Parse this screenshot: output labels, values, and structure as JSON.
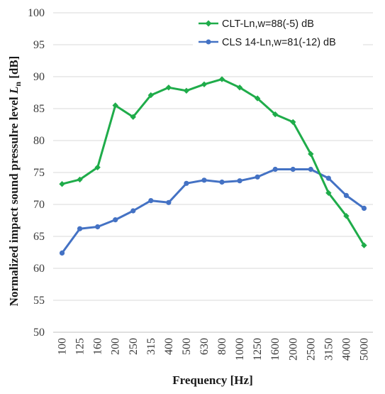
{
  "chart_data": {
    "type": "line",
    "categories": [
      "100",
      "125",
      "160",
      "200",
      "250",
      "315",
      "400",
      "500",
      "630",
      "800",
      "1000",
      "1250",
      "1600",
      "2000",
      "2500",
      "3150",
      "4000",
      "5000"
    ],
    "series": [
      {
        "name": "CLT-Ln,w=88(-5) dB",
        "color": "#1fac4a",
        "marker": "diamond",
        "values": [
          73.2,
          73.9,
          75.8,
          85.5,
          83.7,
          87.1,
          88.3,
          87.8,
          88.8,
          89.6,
          88.3,
          86.6,
          84.1,
          82.9,
          77.9,
          71.8,
          68.2,
          63.6
        ]
      },
      {
        "name": "CLS 14-Ln,w=81(-12) dB",
        "color": "#4472c4",
        "marker": "circle",
        "values": [
          62.4,
          66.2,
          66.5,
          67.6,
          69.0,
          70.6,
          70.3,
          73.3,
          73.8,
          73.5,
          73.7,
          74.3,
          75.5,
          75.5,
          75.5,
          74.1,
          71.4,
          69.4
        ]
      }
    ],
    "xlabel": "Frequency [Hz]",
    "ylabel_prefix": "Normalized impact sound pressulre level ",
    "ylabel_symbol": "L",
    "ylabel_subscript": "n",
    "ylabel_suffix": " [dB]",
    "ylim": [
      50,
      100
    ],
    "yticks": [
      "50",
      "55",
      "60",
      "65",
      "70",
      "75",
      "80",
      "85",
      "90",
      "95",
      "100"
    ],
    "grid": "horizontal",
    "legend_position": "top-right"
  }
}
